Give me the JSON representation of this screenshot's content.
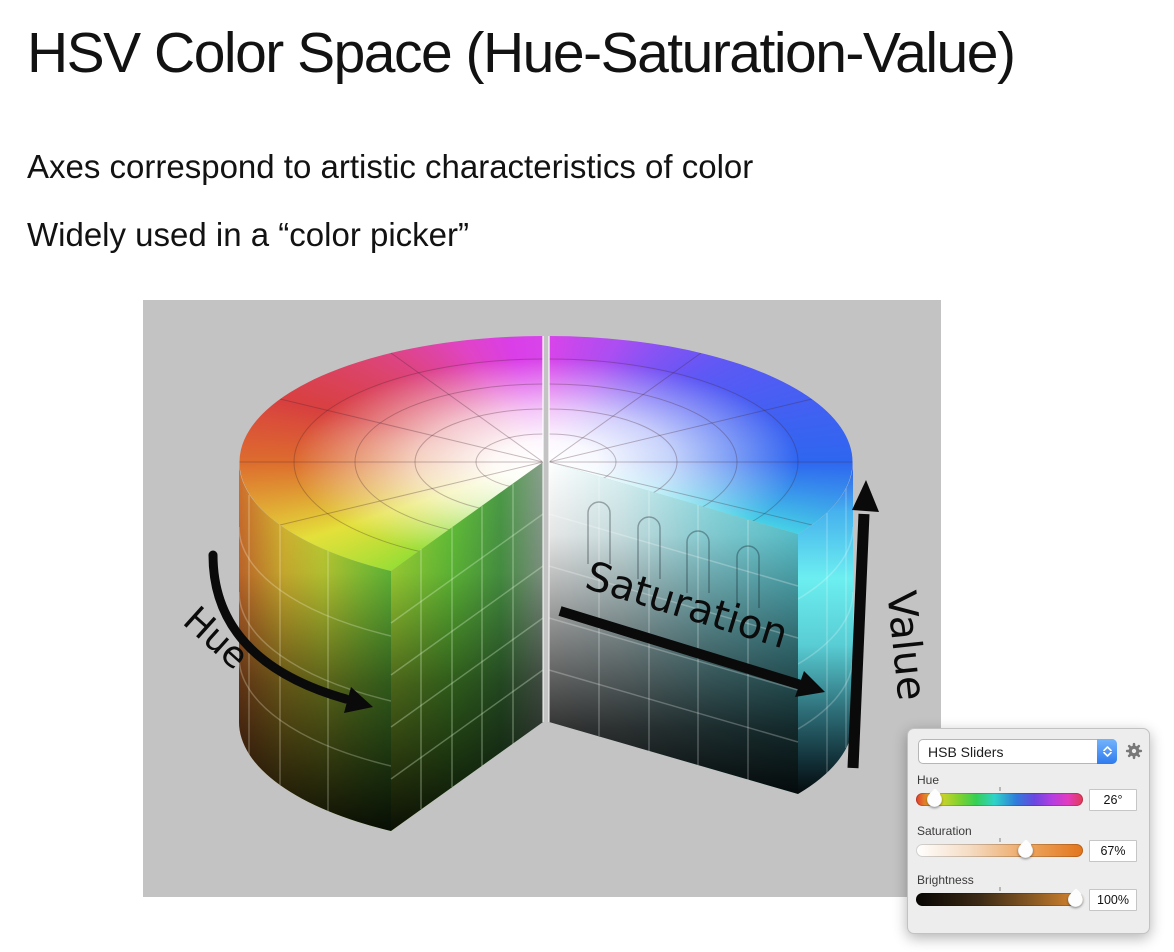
{
  "slide": {
    "title": "HSV Color Space (Hue-Saturation-Value)",
    "bullets": [
      "Axes correspond to artistic characteristics of color",
      "Widely used in a “color picker”"
    ]
  },
  "figure": {
    "description": "HSV cylinder cutaway diagram",
    "background_color": "#c3c3c3",
    "axis_labels": {
      "hue": "Hue",
      "saturation": "Saturation",
      "value": "Value"
    }
  },
  "picker": {
    "dropdown_label": "HSB Sliders",
    "panel_background": "#ededed",
    "accent_blue": "#3b7df2",
    "sliders": [
      {
        "label": "Hue",
        "value": "26°",
        "percent": 7.2
      },
      {
        "label": "Saturation",
        "value": "67%",
        "percent": 67
      },
      {
        "label": "Brightness",
        "value": "100%",
        "percent": 100
      }
    ]
  }
}
